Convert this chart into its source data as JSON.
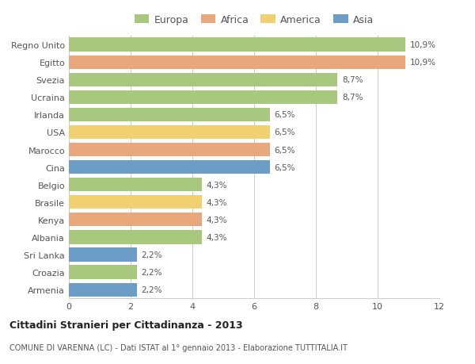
{
  "countries": [
    "Armenia",
    "Croazia",
    "Sri Lanka",
    "Albania",
    "Kenya",
    "Brasile",
    "Belgio",
    "Cina",
    "Marocco",
    "USA",
    "Irlanda",
    "Ucraina",
    "Svezia",
    "Egitto",
    "Regno Unito"
  ],
  "values": [
    2.2,
    2.2,
    2.2,
    4.3,
    4.3,
    4.3,
    4.3,
    6.5,
    6.5,
    6.5,
    6.5,
    8.7,
    8.7,
    10.9,
    10.9
  ],
  "labels": [
    "2,2%",
    "2,2%",
    "2,2%",
    "4,3%",
    "4,3%",
    "4,3%",
    "4,3%",
    "6,5%",
    "6,5%",
    "6,5%",
    "6,5%",
    "8,7%",
    "8,7%",
    "10,9%",
    "10,9%"
  ],
  "continents": [
    "Asia",
    "Europa",
    "Asia",
    "Europa",
    "Africa",
    "America",
    "Europa",
    "Asia",
    "Africa",
    "America",
    "Europa",
    "Europa",
    "Europa",
    "Africa",
    "Europa"
  ],
  "continent_colors": {
    "Europa": "#a8c87e",
    "Africa": "#e8a87c",
    "America": "#f0d070",
    "Asia": "#6b9dc7"
  },
  "legend_order": [
    "Europa",
    "Africa",
    "America",
    "Asia"
  ],
  "legend_colors": [
    "#a8c87e",
    "#e8a87c",
    "#f0d070",
    "#6b9dc7"
  ],
  "title1": "Cittadini Stranieri per Cittadinanza - 2013",
  "title2": "COMUNE DI VARENNA (LC) - Dati ISTAT al 1° gennaio 2013 - Elaborazione TUTTITALIA.IT",
  "xlim": [
    0,
    12
  ],
  "xticks": [
    0,
    2,
    4,
    6,
    8,
    10,
    12
  ],
  "bg_color": "#ffffff",
  "grid_color": "#cccccc",
  "bar_height": 0.78
}
